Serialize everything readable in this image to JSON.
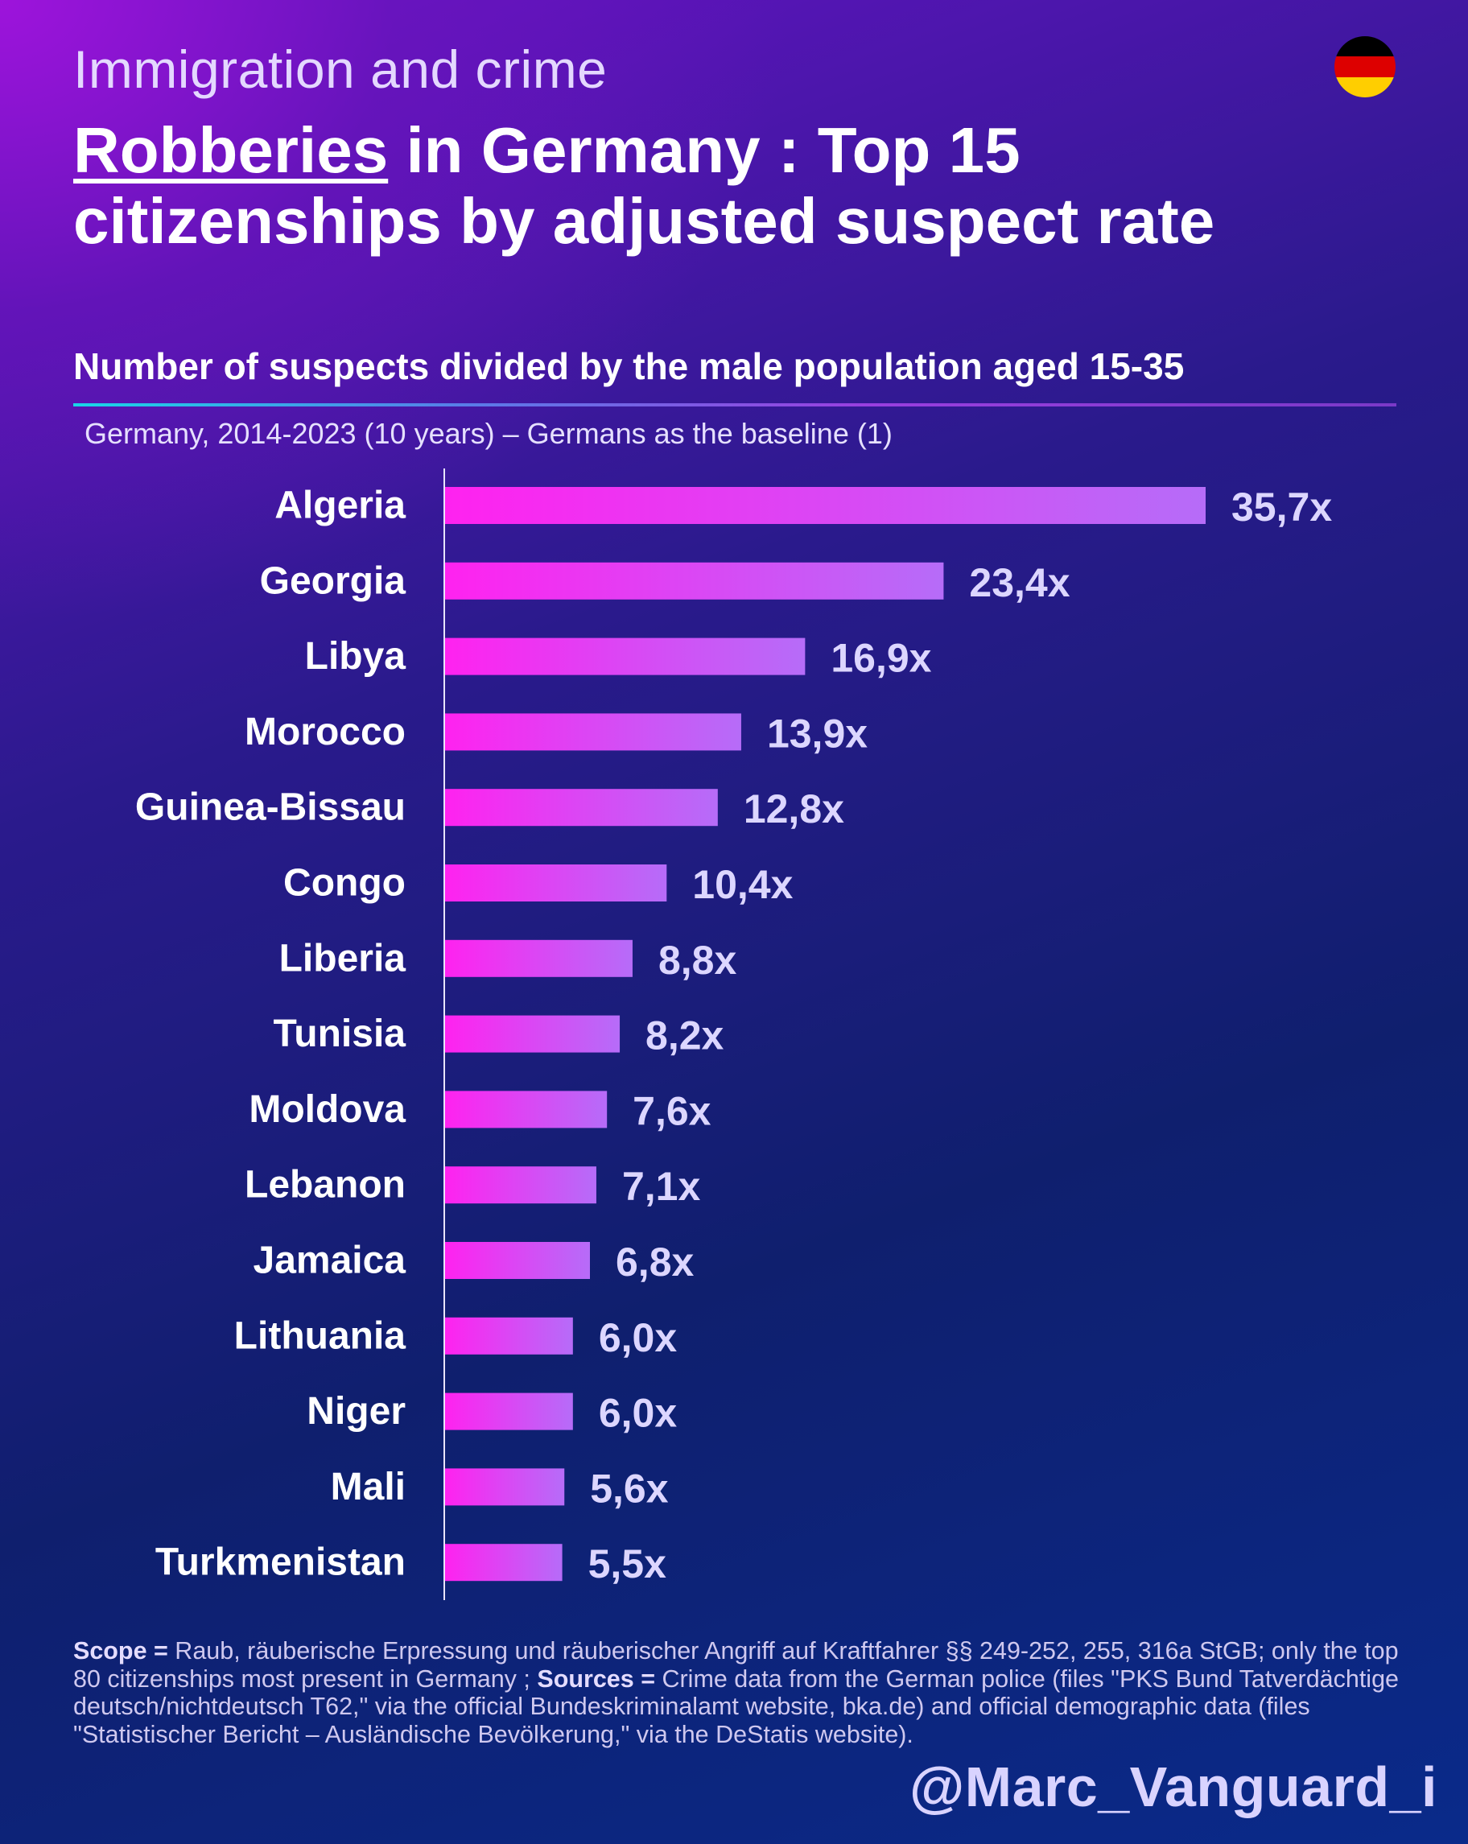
{
  "header": {
    "kicker": "Immigration and crime",
    "title_highlight": "Robberies",
    "title_rest_line1": " in Germany : Top 15",
    "title_line2": "citizenships by adjusted suspect rate",
    "subtitle": "Number of suspects divided by the male population aged 15-35",
    "note": "Germany, 2014-2023 (10 years) – Germans as the baseline (1)",
    "flag_icon": "germany-flag-icon",
    "flag_colors": [
      "#000000",
      "#dd0000",
      "#ffce00"
    ]
  },
  "chart_data": {
    "type": "bar",
    "orientation": "horizontal",
    "categories": [
      "Algeria",
      "Georgia",
      "Libya",
      "Morocco",
      "Guinea-Bissau",
      "Congo",
      "Liberia",
      "Tunisia",
      "Moldova",
      "Lebanon",
      "Jamaica",
      "Lithuania",
      "Niger",
      "Mali",
      "Turkmenistan"
    ],
    "values": [
      35.7,
      23.4,
      16.9,
      13.9,
      12.8,
      10.4,
      8.8,
      8.2,
      7.6,
      7.1,
      6.8,
      6.0,
      6.0,
      5.6,
      5.5
    ],
    "labels": [
      "35,7x",
      "23,4x",
      "16,9x",
      "13,9x",
      "12,8x",
      "10,4x",
      "8,8x",
      "8,2x",
      "7,6x",
      "7,1x",
      "6,8x",
      "6,0x",
      "6,0x",
      "5,6x",
      "5,5x"
    ],
    "grid": false,
    "legend": "none",
    "bar_gradient": [
      "#ff22f0",
      "#b66cf8"
    ],
    "xlim": [
      0,
      35.7
    ]
  },
  "footer": {
    "scope_label": "Scope =",
    "scope_text": " Raub, räuberische Erpressung und räuberischer Angriff auf Kraftfahrer §§ 249-252, 255, 316a StGB; only the top 80 citizenships most present in Germany ; ",
    "sources_label": "Sources =",
    "sources_text": " Crime data from the German police (files \"PKS Bund Tatverdächtige deutsch/nichtdeutsch T62,\" via the official Bundeskriminalamt website, bka.de) and official demographic data (files \"Statistischer Bericht – Ausländische Bevölkerung,\" via the DeStatis website).",
    "handle": "@Marc_Vanguard_i"
  }
}
